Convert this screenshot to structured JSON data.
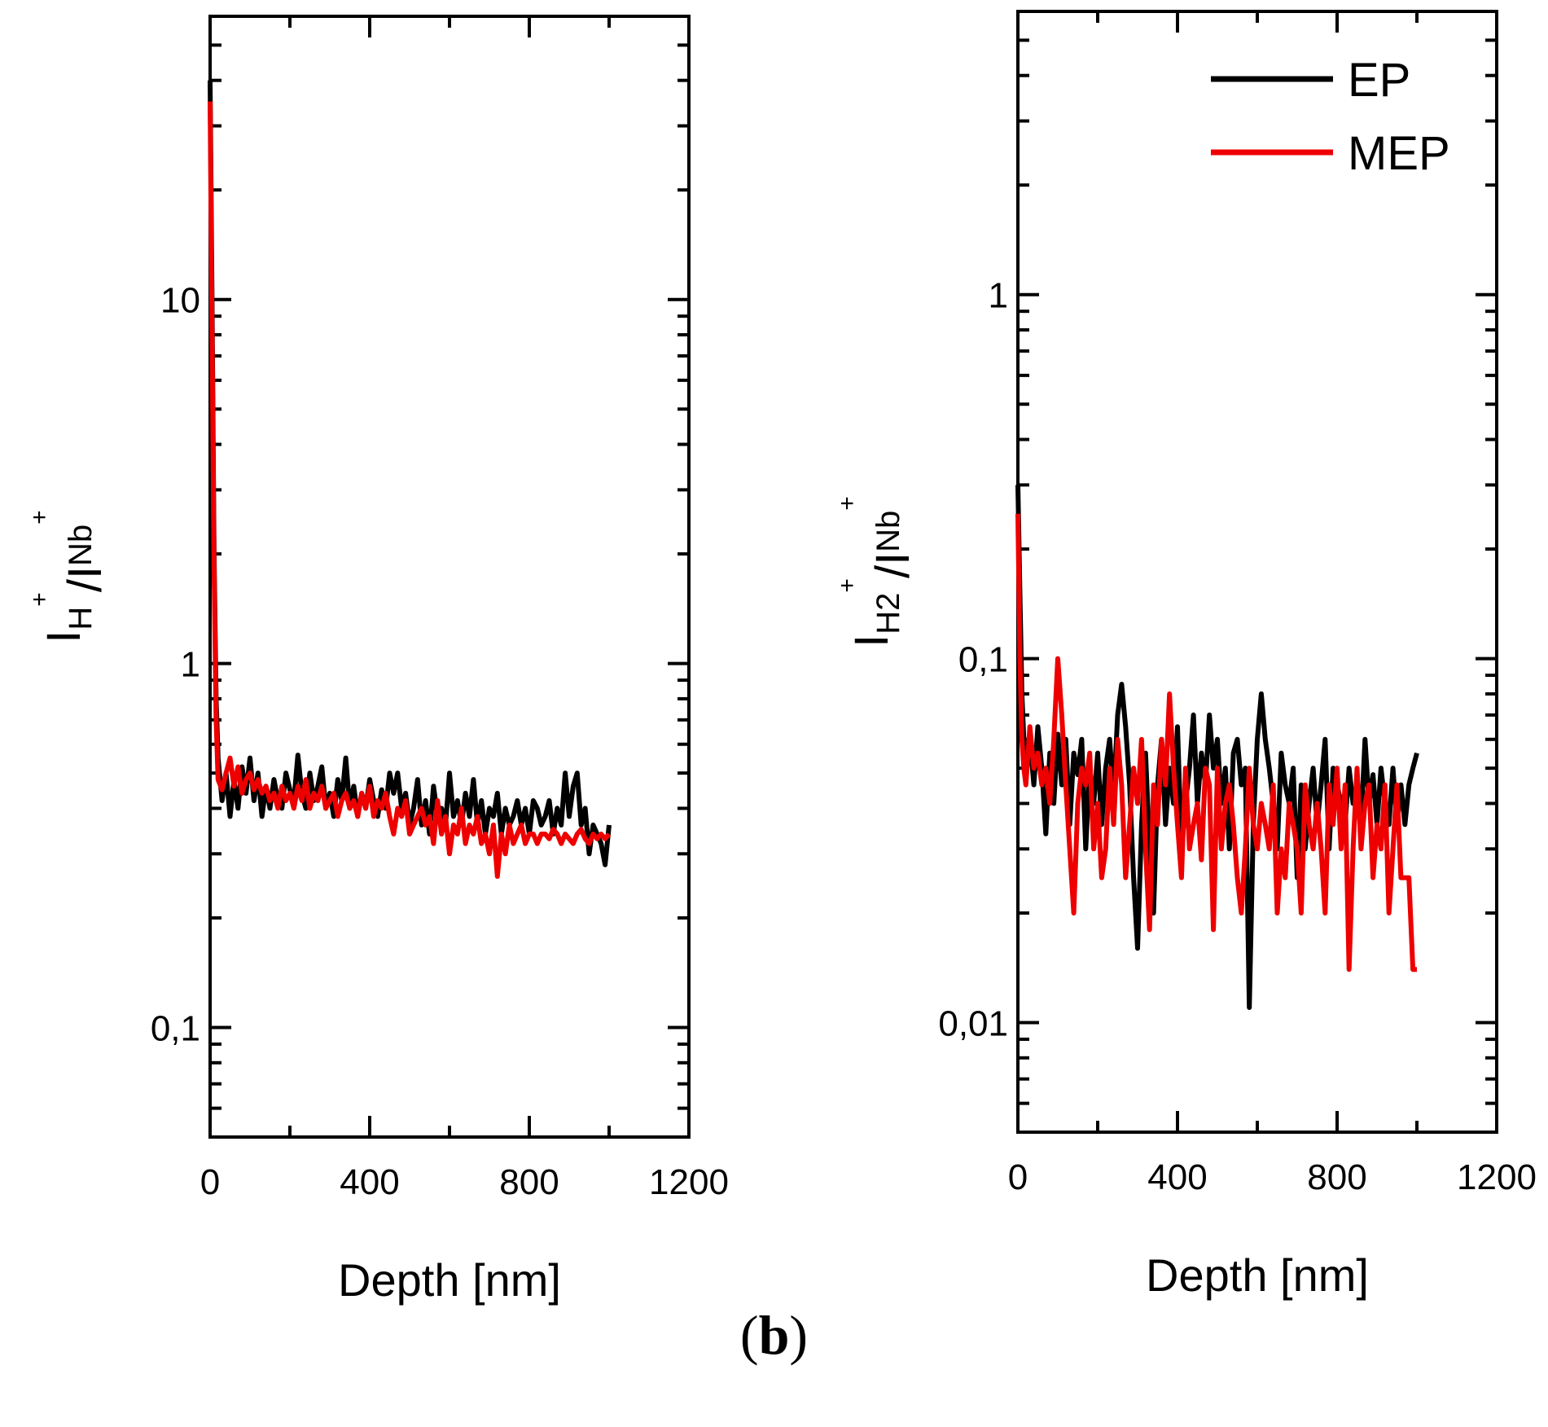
{
  "panel_label": {
    "open": "(",
    "letter": "b",
    "close": ")"
  },
  "colors": {
    "EP": "#000000",
    "MEP": "#ee0000"
  },
  "chart_data": [
    {
      "type": "line",
      "xlabel": "Depth [nm]",
      "ylabel": {
        "main": "I",
        "sub1": "H",
        "sup1": "+",
        "mid": "/I",
        "sub2": "Nb",
        "sup2": "+"
      },
      "xlim": [
        0,
        1200
      ],
      "ylim": [
        0.05,
        60
      ],
      "yscale": "log",
      "xticks": [
        0,
        400,
        800,
        1200
      ],
      "xtick_labels": [
        "0",
        "400",
        "800",
        "1200"
      ],
      "yticks": [
        0.1,
        1,
        10
      ],
      "ytick_labels": [
        "0,1",
        "1",
        "10"
      ],
      "grid": false,
      "series": [
        {
          "name": "EP",
          "color": "#000000",
          "x": [
            0,
            5,
            10,
            15,
            20,
            30,
            40,
            50,
            60,
            70,
            80,
            90,
            100,
            110,
            120,
            130,
            140,
            150,
            160,
            170,
            180,
            190,
            200,
            210,
            220,
            230,
            240,
            250,
            260,
            270,
            280,
            290,
            300,
            310,
            320,
            330,
            340,
            350,
            360,
            370,
            380,
            390,
            400,
            410,
            420,
            430,
            440,
            450,
            460,
            470,
            480,
            490,
            500,
            510,
            520,
            530,
            540,
            550,
            560,
            570,
            580,
            590,
            600,
            610,
            620,
            630,
            640,
            650,
            660,
            670,
            680,
            690,
            700,
            710,
            720,
            730,
            740,
            750,
            760,
            770,
            780,
            790,
            800,
            810,
            820,
            830,
            840,
            850,
            860,
            870,
            880,
            890,
            900,
            910,
            920,
            930,
            940,
            950,
            960,
            970,
            980,
            990,
            1000
          ],
          "y": [
            40,
            10,
            2,
            0.8,
            0.55,
            0.42,
            0.5,
            0.38,
            0.48,
            0.4,
            0.52,
            0.44,
            0.55,
            0.42,
            0.5,
            0.38,
            0.46,
            0.4,
            0.48,
            0.42,
            0.4,
            0.5,
            0.45,
            0.42,
            0.56,
            0.44,
            0.4,
            0.5,
            0.42,
            0.46,
            0.52,
            0.4,
            0.44,
            0.38,
            0.48,
            0.42,
            0.55,
            0.4,
            0.46,
            0.38,
            0.44,
            0.4,
            0.48,
            0.42,
            0.38,
            0.45,
            0.4,
            0.5,
            0.44,
            0.5,
            0.4,
            0.44,
            0.36,
            0.4,
            0.48,
            0.36,
            0.42,
            0.34,
            0.46,
            0.38,
            0.4,
            0.36,
            0.5,
            0.38,
            0.42,
            0.36,
            0.44,
            0.38,
            0.48,
            0.36,
            0.42,
            0.34,
            0.4,
            0.38,
            0.44,
            0.34,
            0.4,
            0.36,
            0.38,
            0.42,
            0.36,
            0.4,
            0.34,
            0.42,
            0.4,
            0.36,
            0.38,
            0.42,
            0.34,
            0.4,
            0.36,
            0.5,
            0.38,
            0.46,
            0.5,
            0.36,
            0.4,
            0.3,
            0.36,
            0.34,
            0.32,
            0.28,
            0.36
          ]
        },
        {
          "name": "MEP",
          "color": "#ee0000",
          "x": [
            0,
            5,
            10,
            15,
            20,
            30,
            40,
            50,
            60,
            70,
            80,
            90,
            100,
            110,
            120,
            130,
            140,
            150,
            160,
            170,
            180,
            190,
            200,
            210,
            220,
            230,
            240,
            250,
            260,
            270,
            280,
            290,
            300,
            310,
            320,
            330,
            340,
            350,
            360,
            370,
            380,
            390,
            400,
            410,
            420,
            430,
            440,
            450,
            460,
            470,
            480,
            490,
            500,
            510,
            520,
            530,
            540,
            550,
            560,
            570,
            580,
            590,
            600,
            610,
            620,
            630,
            640,
            650,
            660,
            670,
            680,
            690,
            700,
            710,
            720,
            730,
            740,
            750,
            760,
            770,
            780,
            790,
            800,
            810,
            820,
            830,
            840,
            850,
            860,
            870,
            880,
            890,
            900,
            910,
            920,
            930,
            940,
            950,
            960,
            970,
            980,
            990,
            1000
          ],
          "y": [
            35,
            8,
            1.8,
            0.7,
            0.48,
            0.45,
            0.5,
            0.55,
            0.46,
            0.52,
            0.44,
            0.48,
            0.5,
            0.45,
            0.48,
            0.44,
            0.46,
            0.42,
            0.44,
            0.4,
            0.46,
            0.42,
            0.44,
            0.4,
            0.46,
            0.42,
            0.48,
            0.4,
            0.44,
            0.42,
            0.46,
            0.4,
            0.42,
            0.44,
            0.38,
            0.42,
            0.44,
            0.4,
            0.42,
            0.38,
            0.44,
            0.4,
            0.46,
            0.38,
            0.42,
            0.4,
            0.44,
            0.38,
            0.34,
            0.4,
            0.38,
            0.42,
            0.34,
            0.36,
            0.38,
            0.4,
            0.36,
            0.38,
            0.32,
            0.42,
            0.34,
            0.38,
            0.3,
            0.36,
            0.34,
            0.4,
            0.32,
            0.36,
            0.34,
            0.38,
            0.32,
            0.34,
            0.3,
            0.36,
            0.26,
            0.34,
            0.3,
            0.36,
            0.32,
            0.34,
            0.36,
            0.32,
            0.34,
            0.34,
            0.32,
            0.34,
            0.34,
            0.33,
            0.35,
            0.34,
            0.32,
            0.34,
            0.33,
            0.32,
            0.34,
            0.35,
            0.33,
            0.32,
            0.34,
            0.33,
            0.34,
            0.33,
            0.34
          ]
        }
      ]
    },
    {
      "type": "line",
      "xlabel": "Depth [nm]",
      "ylabel": {
        "main": "I",
        "sub1": "H2",
        "sup1": "+",
        "mid": "/I",
        "sub2": "Nb",
        "sup2": "+"
      },
      "xlim": [
        0,
        1200
      ],
      "ylim": [
        0.005,
        6
      ],
      "yscale": "log",
      "xticks": [
        0,
        400,
        800,
        1200
      ],
      "xtick_labels": [
        "0",
        "400",
        "800",
        "1200"
      ],
      "yticks": [
        0.01,
        0.1,
        1
      ],
      "ytick_labels": [
        "0,01",
        "0,1",
        "1"
      ],
      "grid": false,
      "legend": {
        "position": "top-right",
        "entries": [
          "EP",
          "MEP"
        ]
      },
      "series": [
        {
          "name": "EP",
          "color": "#000000",
          "x": [
            0,
            5,
            10,
            15,
            20,
            30,
            40,
            50,
            60,
            70,
            80,
            90,
            100,
            110,
            120,
            130,
            140,
            150,
            160,
            170,
            180,
            190,
            200,
            210,
            220,
            230,
            240,
            250,
            260,
            270,
            280,
            290,
            300,
            310,
            320,
            330,
            340,
            350,
            360,
            370,
            380,
            390,
            400,
            410,
            420,
            430,
            440,
            450,
            460,
            470,
            480,
            490,
            500,
            510,
            520,
            530,
            540,
            550,
            560,
            570,
            580,
            590,
            600,
            610,
            620,
            630,
            640,
            650,
            660,
            670,
            680,
            690,
            700,
            710,
            720,
            730,
            740,
            750,
            760,
            770,
            780,
            790,
            800,
            810,
            820,
            830,
            840,
            850,
            860,
            870,
            880,
            890,
            900,
            910,
            920,
            930,
            940,
            950,
            960,
            970,
            980,
            990,
            1000
          ],
          "y": [
            0.3,
            0.15,
            0.08,
            0.06,
            0.05,
            0.06,
            0.045,
            0.065,
            0.05,
            0.033,
            0.055,
            0.04,
            0.062,
            0.045,
            0.06,
            0.035,
            0.055,
            0.048,
            0.06,
            0.03,
            0.05,
            0.04,
            0.055,
            0.035,
            0.05,
            0.06,
            0.042,
            0.07,
            0.085,
            0.065,
            0.045,
            0.025,
            0.016,
            0.035,
            0.055,
            0.03,
            0.02,
            0.045,
            0.06,
            0.035,
            0.05,
            0.04,
            0.065,
            0.03,
            0.04,
            0.05,
            0.07,
            0.04,
            0.055,
            0.045,
            0.07,
            0.05,
            0.06,
            0.04,
            0.05,
            0.03,
            0.055,
            0.06,
            0.045,
            0.05,
            0.011,
            0.035,
            0.06,
            0.08,
            0.06,
            0.05,
            0.04,
            0.03,
            0.055,
            0.045,
            0.04,
            0.05,
            0.025,
            0.045,
            0.03,
            0.04,
            0.05,
            0.035,
            0.045,
            0.06,
            0.03,
            0.05,
            0.045,
            0.04,
            0.035,
            0.05,
            0.04,
            0.045,
            0.035,
            0.06,
            0.04,
            0.048,
            0.035,
            0.05,
            0.04,
            0.035,
            0.05,
            0.035,
            0.045,
            0.035,
            0.045,
            0.05,
            0.055
          ]
        },
        {
          "name": "MEP",
          "color": "#ee0000",
          "x": [
            0,
            5,
            10,
            15,
            20,
            30,
            40,
            50,
            60,
            70,
            80,
            90,
            100,
            110,
            120,
            130,
            140,
            150,
            160,
            170,
            180,
            190,
            200,
            210,
            220,
            230,
            240,
            250,
            260,
            270,
            280,
            290,
            300,
            310,
            320,
            330,
            340,
            350,
            360,
            370,
            380,
            390,
            400,
            410,
            420,
            430,
            440,
            450,
            460,
            470,
            480,
            490,
            500,
            510,
            520,
            530,
            540,
            550,
            560,
            570,
            580,
            590,
            600,
            610,
            620,
            630,
            640,
            650,
            660,
            670,
            680,
            690,
            700,
            710,
            720,
            730,
            740,
            750,
            760,
            770,
            780,
            790,
            800,
            810,
            820,
            830,
            840,
            850,
            860,
            870,
            880,
            890,
            900,
            910,
            920,
            930,
            940,
            950,
            960,
            970,
            980,
            990,
            1000
          ],
          "y": [
            0.25,
            0.1,
            0.06,
            0.05,
            0.045,
            0.065,
            0.05,
            0.055,
            0.045,
            0.05,
            0.04,
            0.06,
            0.1,
            0.07,
            0.045,
            0.03,
            0.02,
            0.04,
            0.05,
            0.045,
            0.055,
            0.03,
            0.04,
            0.025,
            0.03,
            0.05,
            0.035,
            0.06,
            0.045,
            0.025,
            0.035,
            0.05,
            0.04,
            0.06,
            0.03,
            0.018,
            0.045,
            0.035,
            0.06,
            0.045,
            0.08,
            0.05,
            0.035,
            0.025,
            0.05,
            0.03,
            0.035,
            0.04,
            0.028,
            0.05,
            0.045,
            0.018,
            0.05,
            0.03,
            0.04,
            0.045,
            0.035,
            0.025,
            0.02,
            0.03,
            0.05,
            0.035,
            0.03,
            0.04,
            0.035,
            0.03,
            0.045,
            0.02,
            0.03,
            0.025,
            0.04,
            0.035,
            0.03,
            0.02,
            0.045,
            0.035,
            0.03,
            0.04,
            0.03,
            0.02,
            0.045,
            0.035,
            0.05,
            0.03,
            0.045,
            0.014,
            0.03,
            0.05,
            0.03,
            0.04,
            0.045,
            0.025,
            0.035,
            0.03,
            0.045,
            0.02,
            0.03,
            0.045,
            0.025,
            0.025,
            0.025,
            0.014,
            0.014
          ]
        }
      ]
    }
  ]
}
